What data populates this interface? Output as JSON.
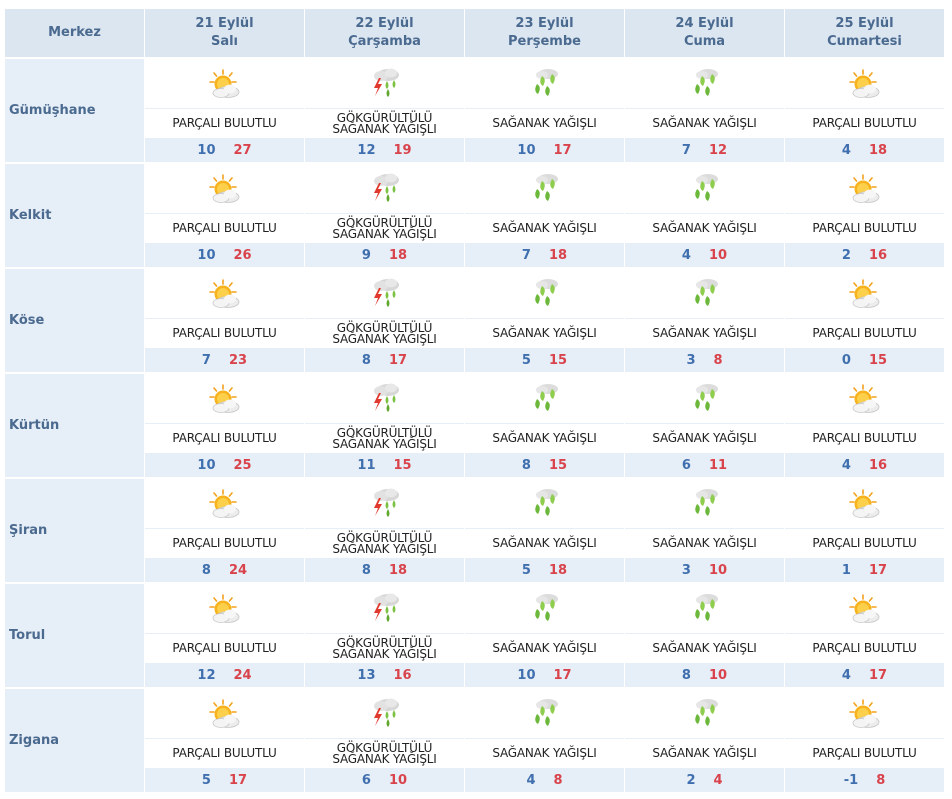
{
  "header": {
    "center_label": "Merkez",
    "days": [
      {
        "date": "21 Eylül",
        "weekday": "Salı"
      },
      {
        "date": "22 Eylül",
        "weekday": "Çarşamba"
      },
      {
        "date": "23 Eylül",
        "weekday": "Perşembe"
      },
      {
        "date": "24 Eylül",
        "weekday": "Cuma"
      },
      {
        "date": "25 Eylül",
        "weekday": "Cumartesi"
      }
    ]
  },
  "conditions": {
    "partly_cloudy": {
      "icon": "partly-cloudy-icon",
      "lines": [
        "PARÇALI BULUTLU"
      ]
    },
    "thunder_showers": {
      "icon": "thunderstorm-rain-icon",
      "lines": [
        "GÖKGÜRÜLTÜLÜ",
        "SAĞANAK YAĞIŞLI"
      ]
    },
    "showers": {
      "icon": "showers-icon",
      "lines": [
        "SAĞANAK YAĞIŞLI"
      ]
    }
  },
  "colors": {
    "min_temp": "#3f6fae",
    "max_temp": "#d9434c",
    "header_bg": "#dbe6f1",
    "cell_bg": "#e6eef7"
  },
  "rows": [
    {
      "city": "Gümüşhane",
      "forecast": [
        {
          "cond": "partly_cloudy",
          "min": "10",
          "max": "27"
        },
        {
          "cond": "thunder_showers",
          "min": "12",
          "max": "19"
        },
        {
          "cond": "showers",
          "min": "10",
          "max": "17"
        },
        {
          "cond": "showers",
          "min": "7",
          "max": "12"
        },
        {
          "cond": "partly_cloudy",
          "min": "4",
          "max": "18"
        }
      ]
    },
    {
      "city": "Kelkit",
      "forecast": [
        {
          "cond": "partly_cloudy",
          "min": "10",
          "max": "26"
        },
        {
          "cond": "thunder_showers",
          "min": "9",
          "max": "18"
        },
        {
          "cond": "showers",
          "min": "7",
          "max": "18"
        },
        {
          "cond": "showers",
          "min": "4",
          "max": "10"
        },
        {
          "cond": "partly_cloudy",
          "min": "2",
          "max": "16"
        }
      ]
    },
    {
      "city": "Köse",
      "forecast": [
        {
          "cond": "partly_cloudy",
          "min": "7",
          "max": "23"
        },
        {
          "cond": "thunder_showers",
          "min": "8",
          "max": "17"
        },
        {
          "cond": "showers",
          "min": "5",
          "max": "15"
        },
        {
          "cond": "showers",
          "min": "3",
          "max": "8"
        },
        {
          "cond": "partly_cloudy",
          "min": "0",
          "max": "15"
        }
      ]
    },
    {
      "city": "Kürtün",
      "forecast": [
        {
          "cond": "partly_cloudy",
          "min": "10",
          "max": "25"
        },
        {
          "cond": "thunder_showers",
          "min": "11",
          "max": "15"
        },
        {
          "cond": "showers",
          "min": "8",
          "max": "15"
        },
        {
          "cond": "showers",
          "min": "6",
          "max": "11"
        },
        {
          "cond": "partly_cloudy",
          "min": "4",
          "max": "16"
        }
      ]
    },
    {
      "city": "Şiran",
      "forecast": [
        {
          "cond": "partly_cloudy",
          "min": "8",
          "max": "24"
        },
        {
          "cond": "thunder_showers",
          "min": "8",
          "max": "18"
        },
        {
          "cond": "showers",
          "min": "5",
          "max": "18"
        },
        {
          "cond": "showers",
          "min": "3",
          "max": "10"
        },
        {
          "cond": "partly_cloudy",
          "min": "1",
          "max": "17"
        }
      ]
    },
    {
      "city": "Torul",
      "forecast": [
        {
          "cond": "partly_cloudy",
          "min": "12",
          "max": "24"
        },
        {
          "cond": "thunder_showers",
          "min": "13",
          "max": "16"
        },
        {
          "cond": "showers",
          "min": "10",
          "max": "17"
        },
        {
          "cond": "showers",
          "min": "8",
          "max": "10"
        },
        {
          "cond": "partly_cloudy",
          "min": "4",
          "max": "17"
        }
      ]
    },
    {
      "city": "Zigana",
      "forecast": [
        {
          "cond": "partly_cloudy",
          "min": "5",
          "max": "17"
        },
        {
          "cond": "thunder_showers",
          "min": "6",
          "max": "10"
        },
        {
          "cond": "showers",
          "min": "4",
          "max": "8"
        },
        {
          "cond": "showers",
          "min": "2",
          "max": "4"
        },
        {
          "cond": "partly_cloudy",
          "min": "-1",
          "max": "8"
        }
      ]
    }
  ]
}
